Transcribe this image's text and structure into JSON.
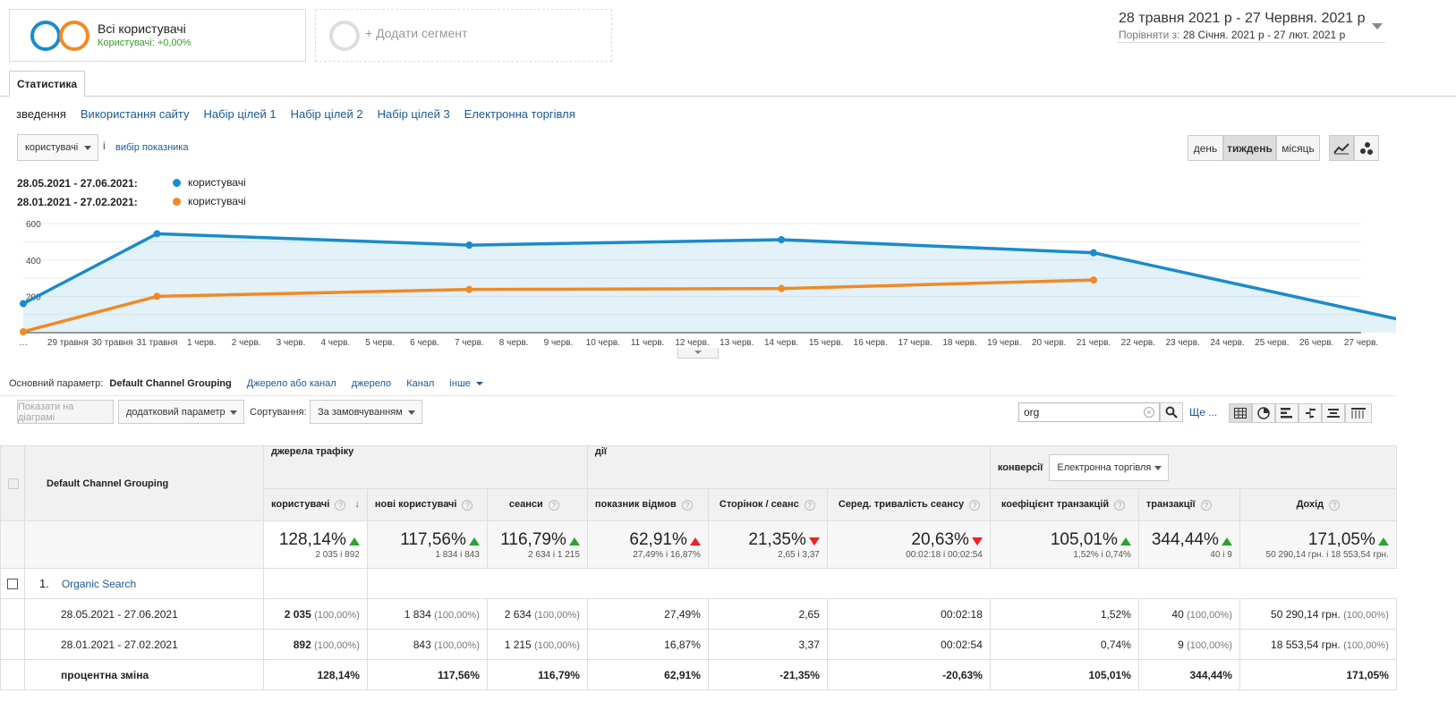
{
  "segments": {
    "active": {
      "title": "Всі користувачі",
      "subtitle": "Користувачі: +0,00%"
    },
    "add_label": "+ Додати сегмент"
  },
  "date_range": {
    "primary": "28 травня 2021 р  -  27 Червня. 2021 р",
    "compare_prefix": "Порівняти з:",
    "compare": "28 Січня. 2021 р  -  27 лют. 2021 р"
  },
  "tab": "Статистика",
  "subnav": [
    "зведення",
    "Використання сайту",
    "Набір цілей 1",
    "Набір цілей 2",
    "Набір цілей 3",
    "Електронна торгівля"
  ],
  "metric_select": {
    "value": "користувачі",
    "info": "i",
    "choose": "вибір показника"
  },
  "granularity": {
    "day": "день",
    "week": "тиждень",
    "month": "місяць"
  },
  "legend": [
    {
      "range": "28.05.2021 - 27.06.2021:",
      "name": "користувачі",
      "color": "#1a8bcc"
    },
    {
      "range": "28.01.2021 - 27.02.2021:",
      "name": "користувачі",
      "color": "#f08a24"
    }
  ],
  "chart_data": {
    "type": "line",
    "y_ticks": [
      "600",
      "400",
      "200"
    ],
    "ylim": [
      0,
      650
    ],
    "x_labels": [
      "…",
      "29 травня",
      "30 травня",
      "31 травня",
      "1 черв.",
      "2 черв.",
      "3 черв.",
      "4 черв.",
      "5 черв.",
      "6 черв.",
      "7 черв.",
      "8 черв.",
      "9 черв.",
      "10 черв.",
      "11 черв.",
      "12 черв.",
      "13 черв.",
      "14 черв.",
      "15 черв.",
      "16 черв.",
      "17 черв.",
      "18 черв.",
      "19 черв.",
      "20 черв.",
      "21 черв.",
      "22 черв.",
      "23 черв.",
      "24 черв.",
      "25 черв.",
      "26 черв.",
      "27 черв."
    ],
    "series": [
      {
        "color": "#1a8bcc",
        "x": [
          0,
          3,
          10,
          17,
          24,
          31
        ],
        "values": [
          160,
          545,
          482,
          512,
          440,
          65
        ],
        "fill": true
      },
      {
        "color": "#f08a24",
        "x": [
          0,
          3,
          10,
          17,
          24
        ],
        "values": [
          5,
          200,
          238,
          243,
          290
        ],
        "fill": false
      }
    ]
  },
  "dimension_bar": {
    "label": "Основний параметр:",
    "active": "Default Channel Grouping",
    "links": [
      "Джерело або канал",
      "джерело",
      "Канал",
      "інше"
    ]
  },
  "toolbar": {
    "plot_rows": "Показати на діаграмі",
    "secondary_dim": "додатковий параметр",
    "sort_label": "Сортування:",
    "sort_value": "За замовчуванням",
    "search_value": "org",
    "more": "Ще ..."
  },
  "table": {
    "dim_header": "Default Channel Grouping",
    "groups": {
      "acquisition": "джерела трафіку",
      "behavior": "дії",
      "conversions": "конверсії",
      "conv_select": "Електронна торгівля"
    },
    "columns": [
      "користувачі",
      "нові користувачі",
      "сеанси",
      "показник відмов",
      "Сторінок / сеанс",
      "Серед. тривалість сеансу",
      "коефіцієнт транзакцій",
      "транзакції",
      "Дохід"
    ],
    "totals": [
      {
        "pct": "128,14%",
        "dir": "up",
        "sub": "2 035 і 892"
      },
      {
        "pct": "117,56%",
        "dir": "up",
        "sub": "1 834 і 843"
      },
      {
        "pct": "116,79%",
        "dir": "up",
        "sub": "2 634 і 1 215"
      },
      {
        "pct": "62,91%",
        "dir": "up-red",
        "sub": "27,49% і 16,87%"
      },
      {
        "pct": "21,35%",
        "dir": "down",
        "sub": "2,65 і 3,37"
      },
      {
        "pct": "20,63%",
        "dir": "down",
        "sub": "00:02:18 і 00:02:54"
      },
      {
        "pct": "105,01%",
        "dir": "up",
        "sub": "1,52% і 0,74%"
      },
      {
        "pct": "344,44%",
        "dir": "up",
        "sub": "40 і 9"
      },
      {
        "pct": "171,05%",
        "dir": "up",
        "sub": "50 290,14 грн. і 18 553,54 грн."
      }
    ],
    "row": {
      "index": "1.",
      "name": "Organic Search"
    },
    "subrows": [
      {
        "label": "28.05.2021 - 27.06.2021",
        "cells": [
          [
            "2 035",
            "(100,00%)"
          ],
          [
            "1 834",
            "(100,00%)"
          ],
          [
            "2 634",
            "(100,00%)"
          ],
          [
            "27,49%",
            ""
          ],
          [
            "2,65",
            ""
          ],
          [
            "00:02:18",
            ""
          ],
          [
            "1,52%",
            ""
          ],
          [
            "40",
            "(100,00%)"
          ],
          [
            "50 290,14 грн.",
            "(100,00%)"
          ]
        ]
      },
      {
        "label": "28.01.2021 - 27.02.2021",
        "cells": [
          [
            "892",
            "(100,00%)"
          ],
          [
            "843",
            "(100,00%)"
          ],
          [
            "1 215",
            "(100,00%)"
          ],
          [
            "16,87%",
            ""
          ],
          [
            "3,37",
            ""
          ],
          [
            "00:02:54",
            ""
          ],
          [
            "0,74%",
            ""
          ],
          [
            "9",
            "(100,00%)"
          ],
          [
            "18 553,54 грн.",
            "(100,00%)"
          ]
        ]
      },
      {
        "label": "процентна зміна",
        "cells": [
          [
            "128,14%",
            ""
          ],
          [
            "117,56%",
            ""
          ],
          [
            "116,79%",
            ""
          ],
          [
            "62,91%",
            ""
          ],
          [
            "-21,35%",
            ""
          ],
          [
            "-20,63%",
            ""
          ],
          [
            "105,01%",
            ""
          ],
          [
            "344,44%",
            ""
          ],
          [
            "171,05%",
            ""
          ]
        ]
      }
    ]
  }
}
